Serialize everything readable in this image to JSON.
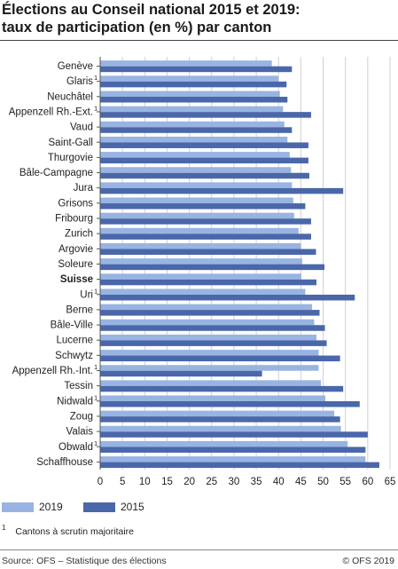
{
  "title_line1": "Élections au Conseil national 2015 et 2019:",
  "title_line2": "taux de participation (en %) par canton",
  "colors": {
    "y2019": "#98b4e2",
    "y2015": "#4a67aa",
    "grid": "#d0d0d0",
    "axis": "#555555"
  },
  "legend": {
    "y2019": "2019",
    "y2015": "2015"
  },
  "footnote": {
    "marker": "1",
    "text": "Cantons à scrutin majoritaire"
  },
  "footer": {
    "source": "Source: OFS – Statistique des élections",
    "copyright": "© OFS 2019"
  },
  "chart_data": {
    "type": "bar",
    "orientation": "horizontal",
    "x_range": [
      0,
      65
    ],
    "x_ticks": [
      0,
      5,
      10,
      15,
      20,
      25,
      30,
      35,
      40,
      45,
      50,
      55,
      60,
      65
    ],
    "grid": true,
    "legend_position": "bottom-left",
    "categories": [
      {
        "label": "Genève",
        "sup": "",
        "bold": false
      },
      {
        "label": "Glaris",
        "sup": "1",
        "bold": false
      },
      {
        "label": "Neuchâtel",
        "sup": "",
        "bold": false
      },
      {
        "label": "Appenzell Rh.-Ext.",
        "sup": "1",
        "bold": false
      },
      {
        "label": "Vaud",
        "sup": "",
        "bold": false
      },
      {
        "label": "Saint-Gall",
        "sup": "",
        "bold": false
      },
      {
        "label": "Thurgovie",
        "sup": "",
        "bold": false
      },
      {
        "label": "Bâle-Campagne",
        "sup": "",
        "bold": false
      },
      {
        "label": "Jura",
        "sup": "",
        "bold": false
      },
      {
        "label": "Grisons",
        "sup": "",
        "bold": false
      },
      {
        "label": "Fribourg",
        "sup": "",
        "bold": false
      },
      {
        "label": "Zurich",
        "sup": "",
        "bold": false
      },
      {
        "label": "Argovie",
        "sup": "",
        "bold": false
      },
      {
        "label": "Soleure",
        "sup": "",
        "bold": false
      },
      {
        "label": "Suisse",
        "sup": "",
        "bold": true
      },
      {
        "label": "Uri",
        "sup": "1",
        "bold": false
      },
      {
        "label": "Berne",
        "sup": "",
        "bold": false
      },
      {
        "label": "Bâle-Ville",
        "sup": "",
        "bold": false
      },
      {
        "label": "Lucerne",
        "sup": "",
        "bold": false
      },
      {
        "label": "Schwytz",
        "sup": "",
        "bold": false
      },
      {
        "label": "Appenzell Rh.-Int.",
        "sup": "1",
        "bold": false
      },
      {
        "label": "Tessin",
        "sup": "",
        "bold": false
      },
      {
        "label": "Nidwald",
        "sup": "1",
        "bold": false
      },
      {
        "label": "Zoug",
        "sup": "",
        "bold": false
      },
      {
        "label": "Valais",
        "sup": "",
        "bold": false
      },
      {
        "label": "Obwald",
        "sup": "1",
        "bold": false
      },
      {
        "label": "Schaffhouse",
        "sup": "",
        "bold": false
      }
    ],
    "series": [
      {
        "name": "2019",
        "values": [
          38.5,
          40.0,
          40.3,
          41.0,
          41.3,
          42.0,
          42.5,
          42.8,
          43.0,
          43.3,
          43.5,
          44.5,
          45.0,
          45.3,
          45.1,
          46.0,
          47.5,
          48.0,
          48.5,
          49.0,
          49.0,
          49.5,
          50.5,
          52.5,
          54.0,
          55.5,
          59.5
        ]
      },
      {
        "name": "2015",
        "values": [
          43.0,
          41.8,
          42.0,
          47.3,
          43.0,
          46.7,
          46.7,
          46.9,
          54.5,
          46.0,
          47.3,
          47.3,
          48.4,
          50.3,
          48.5,
          57.1,
          49.2,
          50.4,
          50.8,
          53.8,
          36.3,
          54.5,
          58.2,
          53.8,
          60.0,
          59.5,
          62.6
        ]
      }
    ]
  }
}
